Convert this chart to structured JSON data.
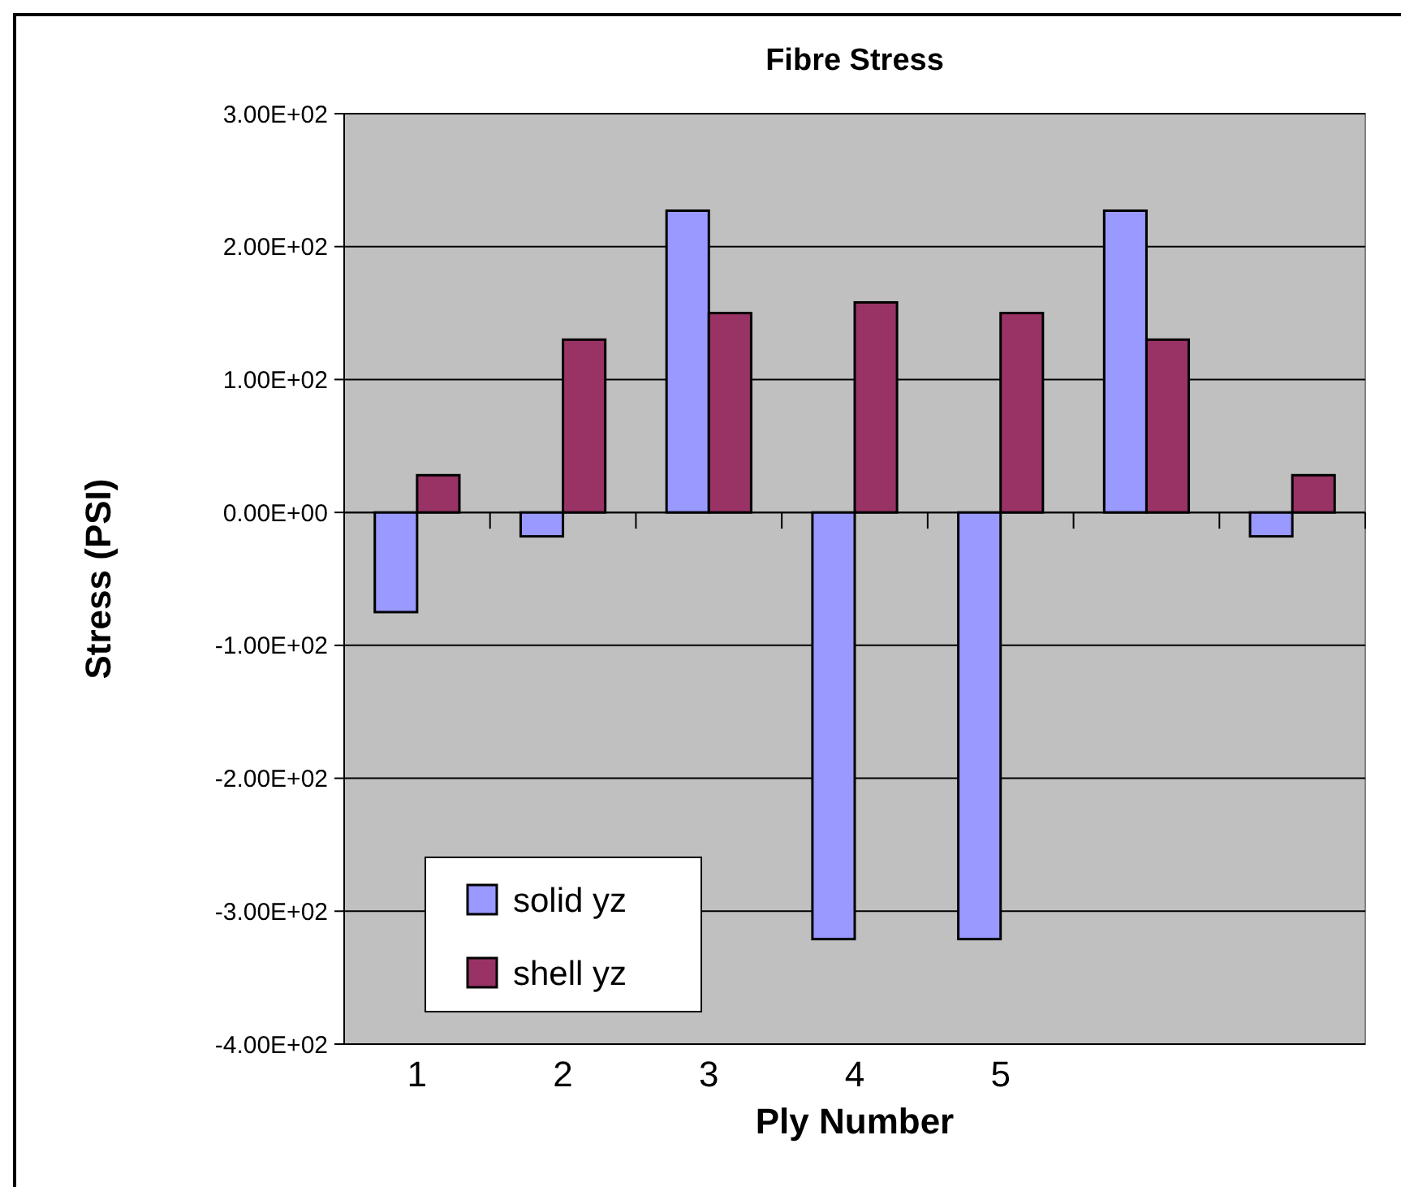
{
  "chart_data": {
    "type": "bar",
    "title": "Fibre Stress",
    "xlabel": "Ply Number",
    "ylabel": "Stress (PSI)",
    "categories": [
      "1",
      "2",
      "3",
      "4",
      "5",
      null,
      null
    ],
    "series": [
      {
        "name": "solid yz",
        "color": "#9999ff",
        "values": [
          -75,
          -18,
          227,
          -321,
          -321,
          227,
          -18
        ]
      },
      {
        "name": "shell yz",
        "color": "#993366",
        "values": [
          28,
          130,
          150,
          158,
          150,
          130,
          28
        ]
      }
    ],
    "ylim": [
      -400,
      300
    ],
    "yticks": [
      {
        "value": 300,
        "label": "3.00E+02"
      },
      {
        "value": 200,
        "label": "2.00E+02"
      },
      {
        "value": 100,
        "label": "1.00E+02"
      },
      {
        "value": 0,
        "label": "0.00E+00"
      },
      {
        "value": -100,
        "label": "-1.00E+02"
      },
      {
        "value": -200,
        "label": "-2.00E+02"
      },
      {
        "value": -300,
        "label": "-3.00E+02"
      },
      {
        "value": -400,
        "label": "-4.00E+02"
      }
    ],
    "grid": "y",
    "legend": "bottom left"
  }
}
